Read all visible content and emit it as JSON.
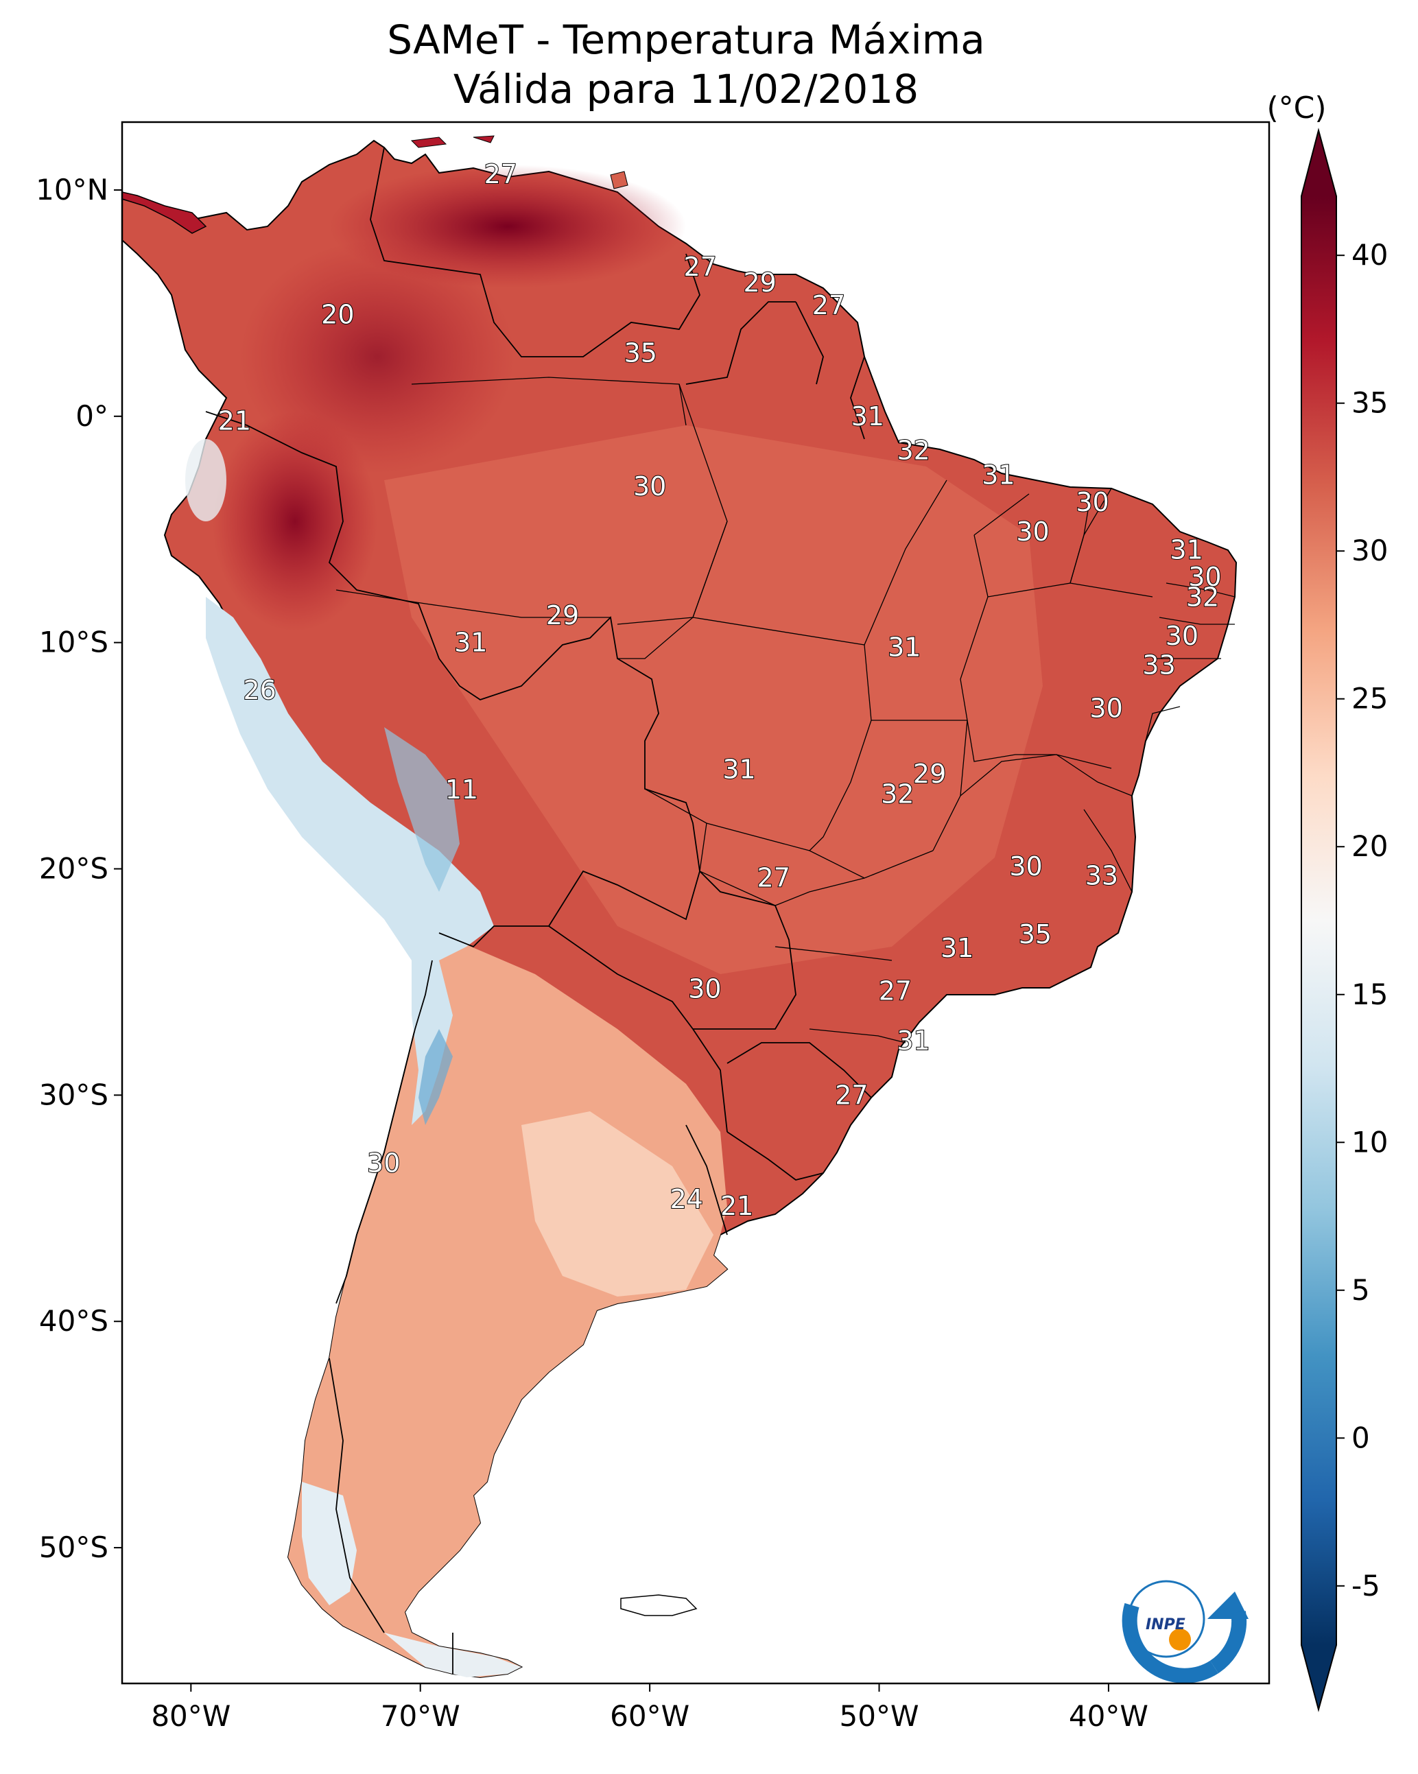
{
  "title": "SAMeT - Temperatura Máxima",
  "subtitle": "Válida para 11/02/2018",
  "colorbar": {
    "unit": "(°C)",
    "ticks": [
      40,
      35,
      30,
      25,
      20,
      15,
      10,
      5,
      0,
      -5
    ],
    "tick_labels": [
      "40",
      "35",
      "30",
      "25",
      "20",
      "15",
      "10",
      "5",
      "0",
      "-5"
    ],
    "range": [
      -7,
      42
    ],
    "colormap": "RdBu_r",
    "colors": [
      "#053061",
      "#2166ac",
      "#4393c3",
      "#92c5de",
      "#d1e5f0",
      "#f7f7f7",
      "#fddbc7",
      "#f4a582",
      "#d6604d",
      "#b2182b",
      "#67001f"
    ]
  },
  "axes": {
    "lon_range": [
      -83,
      -33
    ],
    "lat_range": [
      -56,
      13
    ],
    "x_ticks": [
      -80,
      -70,
      -60,
      -50,
      -40
    ],
    "x_tick_labels": [
      "80°W",
      "70°W",
      "60°W",
      "50°W",
      "40°W"
    ],
    "y_ticks": [
      10,
      0,
      -10,
      -20,
      -30,
      -40,
      -50
    ],
    "y_tick_labels": [
      "10°N",
      "0°",
      "10°S",
      "20°S",
      "30°S",
      "40°S",
      "50°S"
    ]
  },
  "stations": [
    {
      "lon": -66.5,
      "lat": 10.7,
      "value": "27"
    },
    {
      "lon": -57.8,
      "lat": 6.6,
      "value": "27"
    },
    {
      "lon": -55.2,
      "lat": 5.9,
      "value": "29"
    },
    {
      "lon": -52.2,
      "lat": 4.9,
      "value": "27"
    },
    {
      "lon": -73.6,
      "lat": 4.5,
      "value": "20"
    },
    {
      "lon": -60.4,
      "lat": 2.8,
      "value": "35"
    },
    {
      "lon": -78.1,
      "lat": -0.2,
      "value": "21"
    },
    {
      "lon": -50.5,
      "lat": 0.0,
      "value": "31"
    },
    {
      "lon": -48.5,
      "lat": -1.5,
      "value": "32"
    },
    {
      "lon": -44.8,
      "lat": -2.6,
      "value": "31"
    },
    {
      "lon": -60.0,
      "lat": -3.1,
      "value": "30"
    },
    {
      "lon": -40.7,
      "lat": -3.8,
      "value": "30"
    },
    {
      "lon": -43.3,
      "lat": -5.1,
      "value": "30"
    },
    {
      "lon": -36.6,
      "lat": -5.9,
      "value": "31"
    },
    {
      "lon": -35.8,
      "lat": -7.1,
      "value": "30"
    },
    {
      "lon": -35.9,
      "lat": -8.0,
      "value": "32"
    },
    {
      "lon": -63.8,
      "lat": -8.8,
      "value": "29"
    },
    {
      "lon": -67.8,
      "lat": -10.0,
      "value": "31"
    },
    {
      "lon": -48.9,
      "lat": -10.2,
      "value": "31"
    },
    {
      "lon": -36.8,
      "lat": -9.7,
      "value": "30"
    },
    {
      "lon": -37.8,
      "lat": -11.0,
      "value": "33"
    },
    {
      "lon": -40.1,
      "lat": -12.9,
      "value": "30"
    },
    {
      "lon": -77.0,
      "lat": -12.1,
      "value": "26"
    },
    {
      "lon": -56.1,
      "lat": -15.6,
      "value": "31"
    },
    {
      "lon": -47.8,
      "lat": -15.8,
      "value": "29"
    },
    {
      "lon": -49.2,
      "lat": -16.7,
      "value": "32"
    },
    {
      "lon": -68.2,
      "lat": -16.5,
      "value": "11"
    },
    {
      "lon": -43.6,
      "lat": -19.9,
      "value": "30"
    },
    {
      "lon": -40.3,
      "lat": -20.3,
      "value": "33"
    },
    {
      "lon": -54.6,
      "lat": -20.4,
      "value": "27"
    },
    {
      "lon": -43.2,
      "lat": -22.9,
      "value": "35"
    },
    {
      "lon": -46.6,
      "lat": -23.5,
      "value": "31"
    },
    {
      "lon": -57.6,
      "lat": -25.3,
      "value": "30"
    },
    {
      "lon": -49.3,
      "lat": -25.4,
      "value": "27"
    },
    {
      "lon": -48.5,
      "lat": -27.6,
      "value": "31"
    },
    {
      "lon": -51.2,
      "lat": -30.0,
      "value": "27"
    },
    {
      "lon": -71.6,
      "lat": -33.0,
      "value": "30"
    },
    {
      "lon": -58.4,
      "lat": -34.6,
      "value": "24"
    },
    {
      "lon": -56.2,
      "lat": -34.9,
      "value": "21"
    }
  ],
  "logo": {
    "text": "INPE"
  }
}
